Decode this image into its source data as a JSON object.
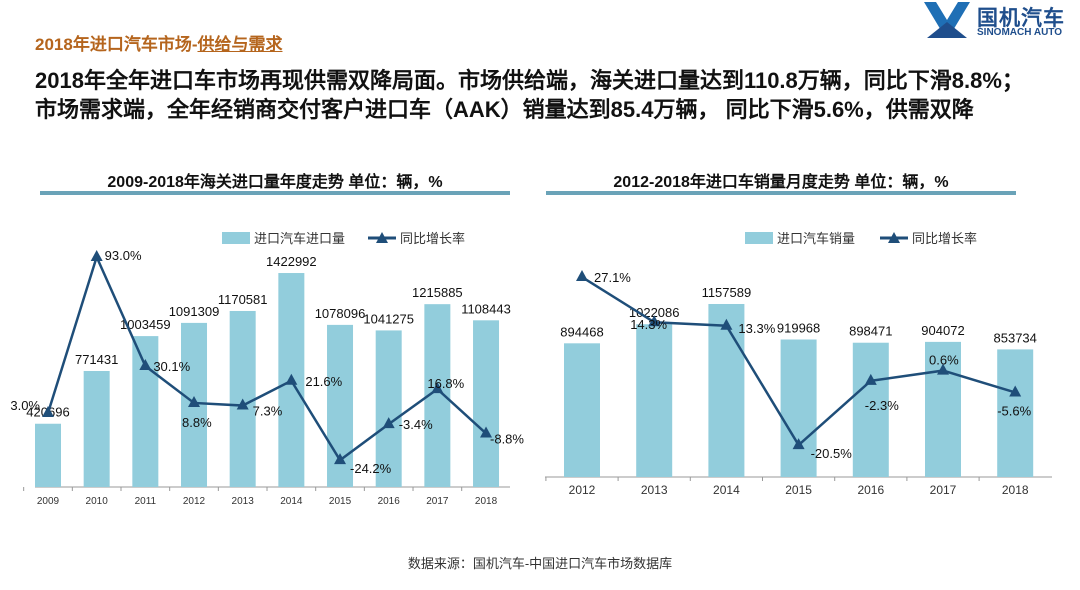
{
  "header": {
    "title_prefix": "2018年进口汽车市场-",
    "title_suffix": "供给与需求",
    "logo_cn": "国机汽车",
    "logo_en": "SINOMACH AUTO",
    "title_color": "#b5651d"
  },
  "headline": "2018年全年进口车市场再现供需双降局面。市场供给端，海关进口量达到110.8万辆，同比下滑8.8%；市场需求端，全年经销商交付客户进口车（AAK）销量达到85.4万辆， 同比下滑5.6%，供需双降",
  "source": "数据来源：国机汽车-中国进口汽车市场数据库",
  "chart_data": [
    {
      "type": "bar+line",
      "title": "2009-2018年海关进口量年度走势     单位：辆，%",
      "categories": [
        "2009",
        "2010",
        "2011",
        "2012",
        "2013",
        "2014",
        "2015",
        "2016",
        "2017",
        "2018"
      ],
      "series": [
        {
          "name": "进口汽车进口量",
          "type": "bar",
          "color": "#92cddc",
          "values": [
            420696,
            771431,
            1003459,
            1091309,
            1170581,
            1422992,
            1078096,
            1041275,
            1215885,
            1108443
          ]
        },
        {
          "name": "同比增长率",
          "type": "line",
          "color": "#1f4e79",
          "marker": "triangle",
          "values": [
            3.0,
            93.0,
            30.1,
            8.8,
            7.3,
            21.6,
            -24.2,
            -3.4,
            16.8,
            -8.8
          ],
          "labels": [
            "3.0%",
            "93.0%",
            "30.1%",
            "8.8%",
            "7.3%",
            "21.6%",
            "-24.2%",
            "-3.4%",
            "16.8%",
            "-8.8%"
          ]
        }
      ],
      "legend": "top"
    },
    {
      "type": "bar+line",
      "title": "2012-2018年进口车销量月度走势     单位：辆，%",
      "categories": [
        "2012",
        "2013",
        "2014",
        "2015",
        "2016",
        "2017",
        "2018"
      ],
      "series": [
        {
          "name": "进口汽车销量",
          "type": "bar",
          "color": "#92cddc",
          "values": [
            894468,
            1022086,
            1157589,
            919968,
            898471,
            904072,
            853734
          ]
        },
        {
          "name": "同比增长率",
          "type": "line",
          "color": "#1f4e79",
          "marker": "triangle",
          "values": [
            27.1,
            14.3,
            13.3,
            -20.5,
            -2.3,
            0.6,
            -5.6
          ],
          "labels": [
            "27.1%",
            "14.3%",
            "13.3%",
            "-20.5%",
            "-2.3%",
            "0.6%",
            "-5.6%"
          ]
        }
      ],
      "legend": "top"
    }
  ]
}
